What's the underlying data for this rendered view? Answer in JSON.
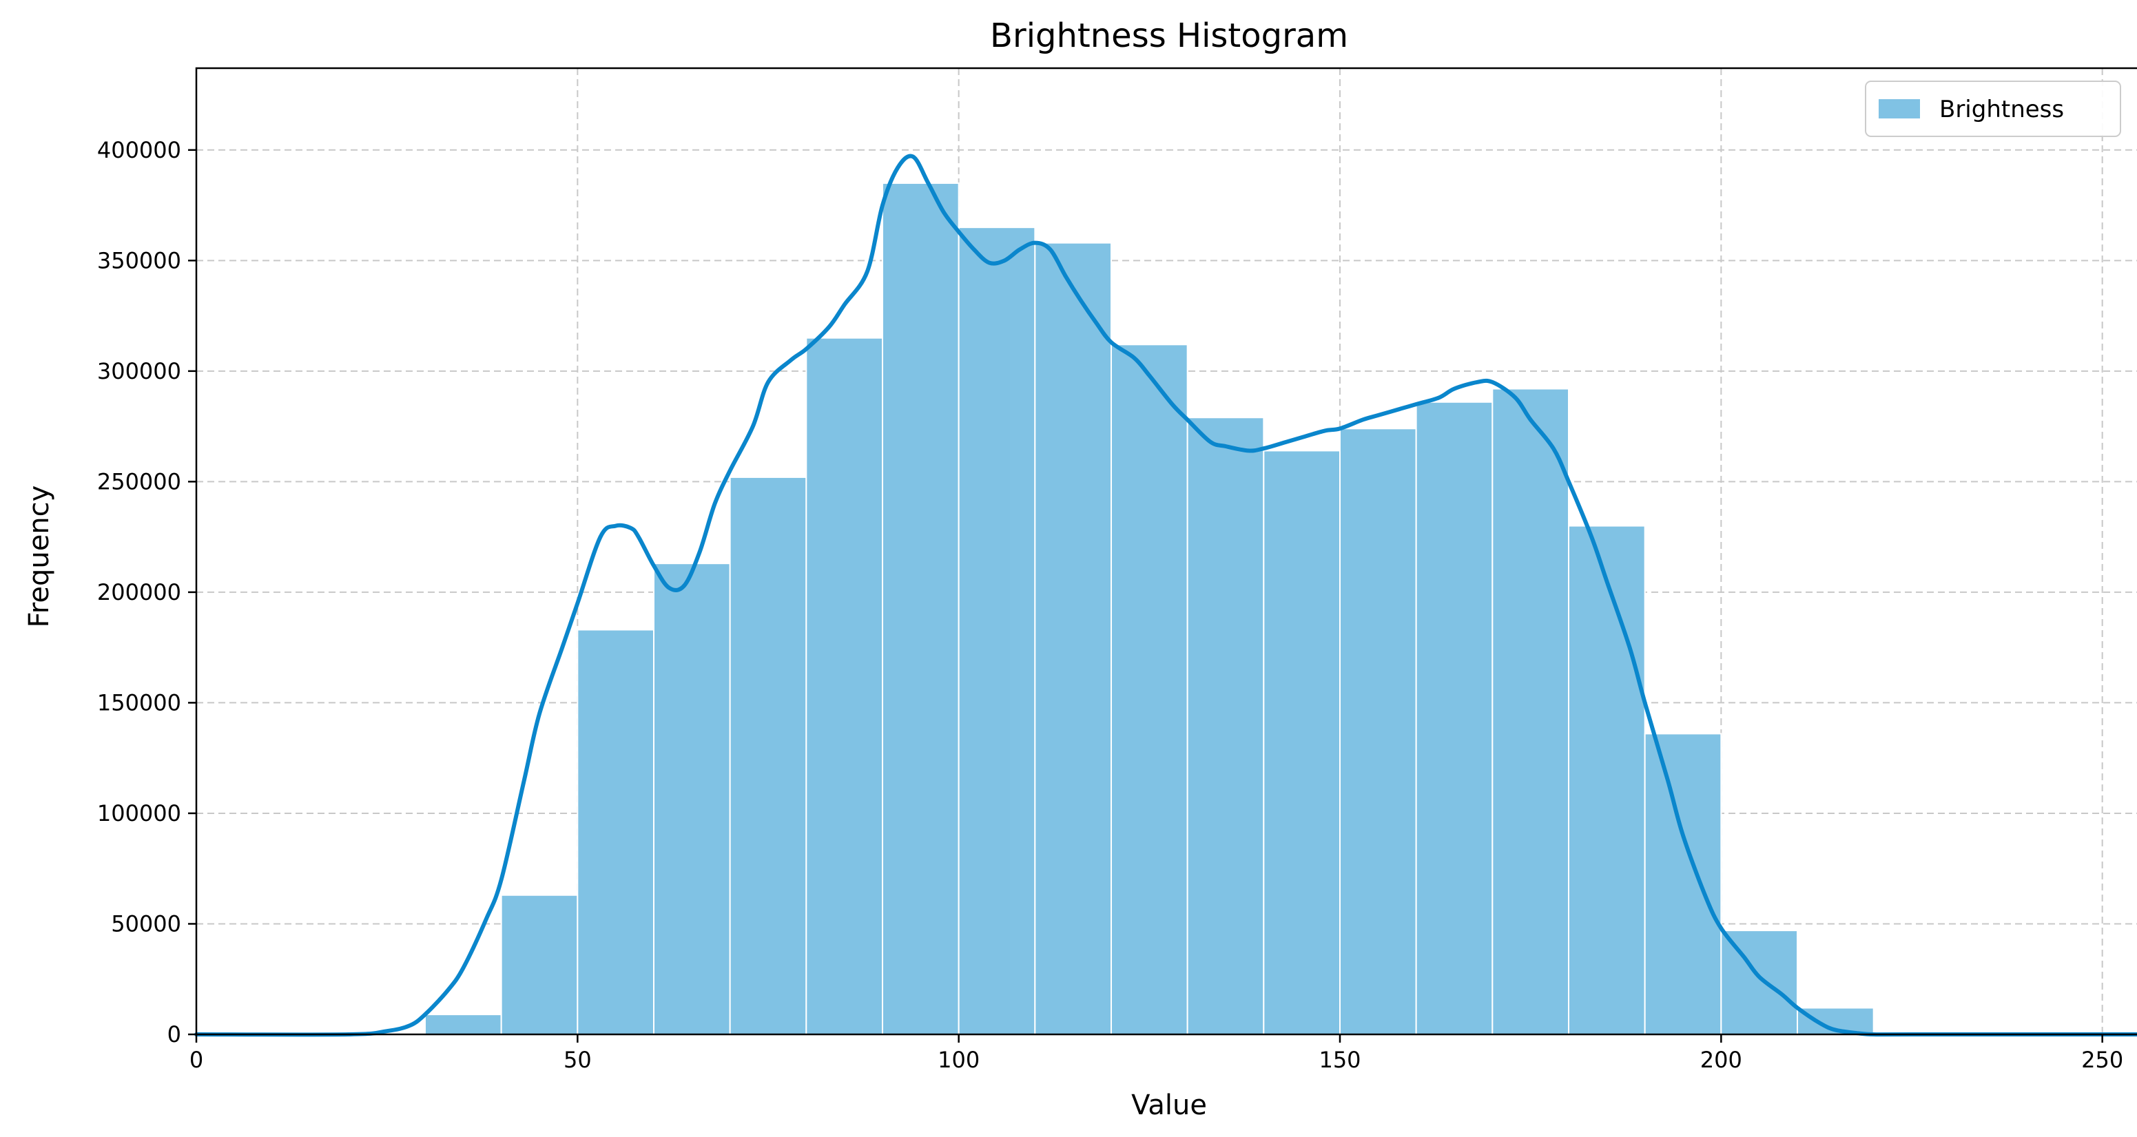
{
  "chart_data": {
    "type": "bar",
    "title": "Brightness Histogram",
    "xlabel": "Value",
    "ylabel": "Frequency",
    "xlim": [
      0,
      255
    ],
    "ylim": [
      0,
      437000
    ],
    "x_ticks": [
      0,
      50,
      100,
      150,
      200,
      250
    ],
    "y_ticks": [
      0,
      50000,
      100000,
      150000,
      200000,
      250000,
      300000,
      350000,
      400000
    ],
    "grid": true,
    "legend_position": "top-right",
    "bar_color": "#80c2e4",
    "curve_color": "#0a86cc",
    "series": [
      {
        "name": "Brightness",
        "bin_edges": [
          30,
          40,
          50,
          60,
          70,
          80,
          90,
          100,
          110,
          120,
          130,
          140,
          150,
          160,
          170,
          180,
          190,
          200,
          210,
          220
        ],
        "values": [
          9000,
          63000,
          183000,
          213000,
          252000,
          315000,
          385000,
          365000,
          358000,
          312000,
          279000,
          264000,
          274000,
          286000,
          292000,
          230000,
          136000,
          47000,
          12000
        ]
      },
      {
        "kind": "density-curve",
        "x": [
          0,
          20,
          25,
          28,
          30,
          33,
          35,
          38,
          40,
          43,
          45,
          48,
          50,
          53,
          55,
          57,
          58,
          60,
          62,
          64,
          66,
          68,
          70,
          73,
          75,
          78,
          80,
          83,
          85,
          88,
          90,
          92,
          94,
          96,
          98,
          100,
          102,
          104,
          106,
          108,
          110,
          112,
          114,
          116,
          118,
          120,
          123,
          125,
          128,
          130,
          133,
          135,
          138,
          140,
          143,
          145,
          148,
          150,
          153,
          155,
          158,
          160,
          163,
          165,
          168,
          170,
          173,
          175,
          178,
          180,
          183,
          185,
          188,
          190,
          193,
          195,
          198,
          200,
          203,
          205,
          208,
          210,
          213,
          215,
          218,
          220,
          225,
          255
        ],
        "y": [
          0,
          0,
          1500,
          4000,
          9000,
          20000,
          30000,
          52000,
          70000,
          115000,
          145000,
          175000,
          195000,
          225000,
          230000,
          229000,
          225000,
          212000,
          202000,
          203000,
          218000,
          240000,
          255000,
          275000,
          295000,
          305000,
          310000,
          320000,
          330000,
          345000,
          375000,
          392000,
          397000,
          385000,
          372000,
          363000,
          355000,
          349000,
          350000,
          355000,
          358000,
          355000,
          343000,
          332000,
          322000,
          313000,
          306000,
          298000,
          285000,
          278000,
          268000,
          266000,
          264000,
          265000,
          268000,
          270000,
          273000,
          274000,
          278000,
          280000,
          283000,
          285000,
          288000,
          292000,
          295000,
          295000,
          288000,
          278000,
          265000,
          250000,
          225000,
          205000,
          175000,
          150000,
          115000,
          90000,
          62000,
          48000,
          35000,
          26000,
          18000,
          12000,
          5000,
          2000,
          500,
          0,
          0,
          0
        ]
      }
    ]
  }
}
